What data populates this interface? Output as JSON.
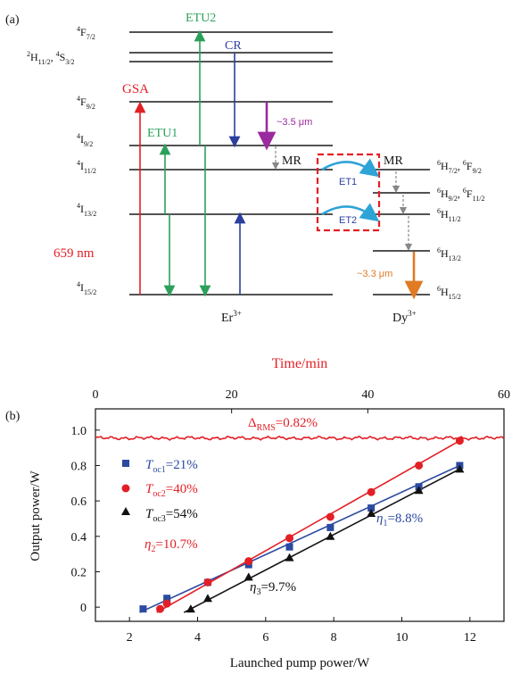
{
  "panel_a": {
    "label": "(a)",
    "er_levels": [
      {
        "base": "F",
        "sup": "4",
        "sub": "7/2"
      },
      {
        "base": "H",
        "sup": "2",
        "sub": "11/2",
        "sep": ", ",
        "base2": "S",
        "sup2": "4",
        "sub2": "3/2"
      },
      {
        "base": "F",
        "sup": "4",
        "sub": "9/2"
      },
      {
        "base": "I",
        "sup": "4",
        "sub": "9/2"
      },
      {
        "base": "I",
        "sup": "4",
        "sub": "11/2"
      },
      {
        "base": "I",
        "sup": "4",
        "sub": "13/2"
      },
      {
        "base": "I",
        "sup": "4",
        "sub": "15/2"
      }
    ],
    "dy_levels": [
      {
        "base": "H",
        "sup": "6",
        "sub": "7/2",
        "sep": ", ",
        "base2": "F",
        "sup2": "6",
        "sub2": "9/2"
      },
      {
        "base": "H",
        "sup": "6",
        "sub": "9/2",
        "sep": ", ",
        "base2": "F",
        "sup2": "6",
        "sub2": "11/2"
      },
      {
        "base": "H",
        "sup": "6",
        "sub": "11/2"
      },
      {
        "base": "H",
        "sup": "6",
        "sub": "13/2"
      },
      {
        "base": "H",
        "sup": "6",
        "sub": "15/2"
      }
    ],
    "labels": {
      "gsa": "GSA",
      "etu1": "ETU1",
      "etu2": "ETU2",
      "cr": "CR",
      "mr1": "MR",
      "mr2": "MR",
      "et1": "ET1",
      "et2": "ET2",
      "pump": "659 nm",
      "em_er": "~3.5 μm",
      "em_dy": "~3.3 μm",
      "er_ion": "Er",
      "er_ion_sup": "3+",
      "dy_ion": "Dy",
      "dy_ion_sup": "3+"
    },
    "colors": {
      "gsa": "#e31f26",
      "etu": "#2ca05a",
      "cr": "#2b3f9e",
      "em_er": "#9a2aa0",
      "em_dy": "#e07b24",
      "et": "#2ea3d6",
      "box": "#e31f26",
      "mr": "#888888"
    }
  },
  "panel_b": {
    "label": "(b)",
    "chart_data": {
      "type": "scatter",
      "xlabel": "Launched pump power/W",
      "ylabel": "Output power/W",
      "top_xlabel": "Time/min",
      "xlim": [
        1,
        13
      ],
      "ylim": [
        -0.08,
        1.12
      ],
      "xticks": [
        2,
        4,
        6,
        8,
        10,
        12
      ],
      "yticks": [
        0,
        0.2,
        0.4,
        0.6,
        0.8,
        1.0
      ],
      "yticklabels": [
        "0",
        "0.2",
        "0.4",
        "0.6",
        "0.8",
        "1.0"
      ],
      "top_xlim": [
        0,
        60
      ],
      "top_xticks": [
        0,
        20,
        40,
        60
      ],
      "legend_position": "upper-left",
      "series": [
        {
          "name_base": "T",
          "name_sub": "oc1",
          "name_value": "=21%",
          "color": "#2b4aa0",
          "marker": "square",
          "x": [
            2.4,
            3.1,
            4.3,
            5.5,
            6.7,
            7.9,
            9.1,
            10.5,
            11.7
          ],
          "y": [
            -0.01,
            0.05,
            0.14,
            0.24,
            0.34,
            0.45,
            0.56,
            0.68,
            0.8
          ],
          "fit": [
            [
              2.3,
              -0.03
            ],
            [
              11.7,
              0.8
            ]
          ],
          "slope_base": "η",
          "slope_sub": "1",
          "slope_value": "=8.8%"
        },
        {
          "name_base": "T",
          "name_sub": "oc2",
          "name_value": "=40%",
          "color": "#e31f26",
          "marker": "circle",
          "x": [
            2.9,
            3.1,
            4.3,
            5.5,
            6.7,
            7.9,
            9.1,
            10.5,
            11.7
          ],
          "y": [
            -0.01,
            0.02,
            0.14,
            0.26,
            0.39,
            0.51,
            0.65,
            0.8,
            0.94
          ],
          "fit": [
            [
              2.8,
              -0.03
            ],
            [
              11.7,
              0.94
            ]
          ],
          "slope_base": "η",
          "slope_sub": "2",
          "slope_value": "=10.7%"
        },
        {
          "name_base": "T",
          "name_sub": "oc3",
          "name_value": "=54%",
          "color": "#111111",
          "marker": "triangle",
          "x": [
            3.8,
            4.3,
            5.5,
            6.7,
            7.9,
            9.1,
            10.5,
            11.7
          ],
          "y": [
            -0.01,
            0.05,
            0.17,
            0.28,
            0.4,
            0.53,
            0.66,
            0.78
          ],
          "fit": [
            [
              3.6,
              -0.03
            ],
            [
              11.7,
              0.78
            ]
          ],
          "slope_base": "η",
          "slope_sub": "3",
          "slope_value": "=9.7%"
        }
      ],
      "stability": {
        "base": "Δ",
        "sub": "RMS",
        "value": "=0.82%",
        "mean": 0.955,
        "amplitude": 0.01,
        "color": "#e31f26"
      }
    }
  }
}
